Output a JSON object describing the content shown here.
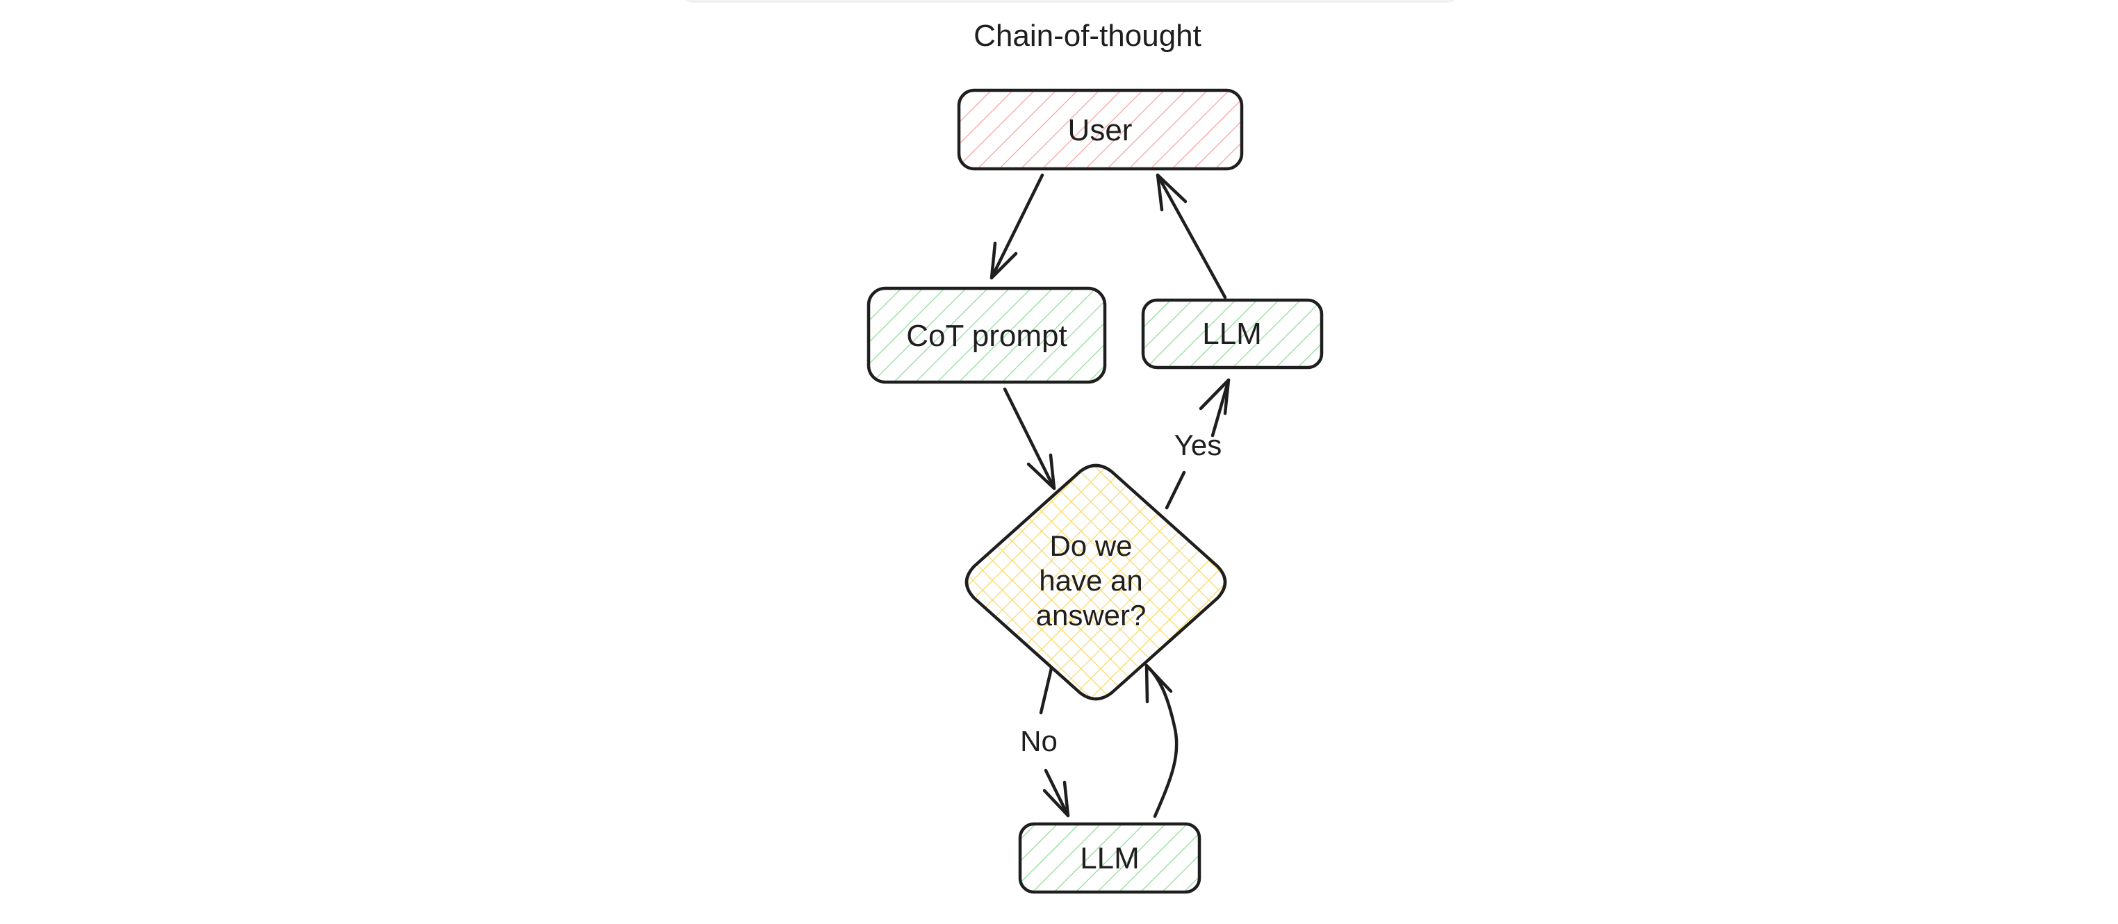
{
  "diagram": {
    "title": "Chain-of-thought",
    "nodes": {
      "user": {
        "label": "User",
        "color": "#ffc9c9"
      },
      "cot_prompt": {
        "label": "CoT prompt",
        "color": "#b2f2bb"
      },
      "decision": {
        "line1": "Do we",
        "line2": "have an",
        "line3": "answer?",
        "color": "#ffec99"
      },
      "llm_yes": {
        "label": "LLM",
        "color": "#b2f2bb"
      },
      "llm_no": {
        "label": "LLM",
        "color": "#b2f2bb"
      }
    },
    "edges": {
      "yes_label": "Yes",
      "no_label": "No"
    }
  }
}
